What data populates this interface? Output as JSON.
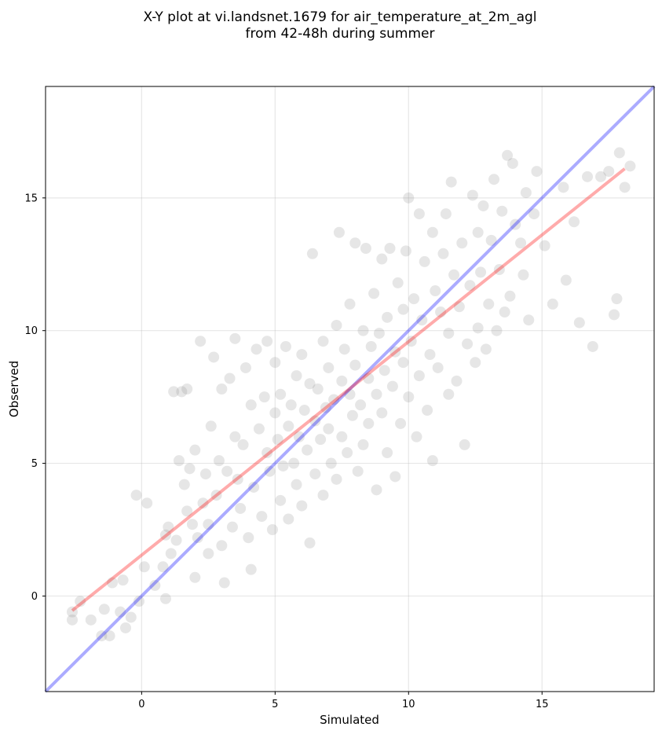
{
  "chart_data": {
    "type": "scatter",
    "title": "X-Y plot at vi.landsnet.1679 for air_temperature_at_2m_agl",
    "subtitle": "from 42-48h during summer",
    "xlabel": "Simulated",
    "ylabel": "Observed",
    "xlim": [
      -3.6,
      19.2
    ],
    "ylim": [
      -3.6,
      19.2
    ],
    "x_ticks": [
      0,
      5,
      10,
      15
    ],
    "y_ticks": [
      0,
      5,
      10,
      15
    ],
    "x_tick_labels": [
      "0",
      "5",
      "10",
      "15"
    ],
    "y_tick_labels": [
      "0",
      "5",
      "10",
      "15"
    ],
    "grid": true,
    "point_color": "#808080",
    "point_opacity": 0.2,
    "identity_line": {
      "x": [
        -3.6,
        19.2
      ],
      "y": [
        -3.6,
        19.2
      ],
      "color": "#0000ff"
    },
    "regression_line": {
      "x": [
        -2.6,
        18.1
      ],
      "y": [
        -0.55,
        16.1
      ],
      "color": "#ff0000"
    },
    "points": [
      [
        -2.6,
        -0.6
      ],
      [
        -2.6,
        -0.9
      ],
      [
        -2.3,
        -0.2
      ],
      [
        -1.9,
        -0.9
      ],
      [
        -1.5,
        -1.5
      ],
      [
        -1.4,
        -0.5
      ],
      [
        -1.2,
        -1.5
      ],
      [
        -1.1,
        0.5
      ],
      [
        -0.8,
        -0.6
      ],
      [
        -0.7,
        0.6
      ],
      [
        -0.6,
        -1.2
      ],
      [
        -0.4,
        -0.8
      ],
      [
        -0.1,
        -0.2
      ],
      [
        -0.2,
        3.8
      ],
      [
        0.2,
        3.5
      ],
      [
        0.1,
        1.1
      ],
      [
        0.5,
        0.4
      ],
      [
        0.8,
        1.1
      ],
      [
        0.9,
        2.3
      ],
      [
        0.9,
        -0.1
      ],
      [
        1.0,
        2.6
      ],
      [
        1.1,
        1.6
      ],
      [
        1.2,
        7.7
      ],
      [
        1.3,
        2.1
      ],
      [
        1.4,
        5.1
      ],
      [
        1.5,
        7.7
      ],
      [
        1.7,
        7.8
      ],
      [
        1.6,
        4.2
      ],
      [
        1.7,
        3.2
      ],
      [
        1.8,
        4.8
      ],
      [
        1.9,
        2.7
      ],
      [
        2.0,
        5.5
      ],
      [
        2.0,
        0.7
      ],
      [
        2.1,
        2.2
      ],
      [
        2.2,
        9.6
      ],
      [
        2.3,
        3.5
      ],
      [
        2.4,
        4.6
      ],
      [
        2.5,
        2.7
      ],
      [
        2.5,
        1.6
      ],
      [
        2.6,
        6.4
      ],
      [
        2.7,
        9.0
      ],
      [
        2.8,
        3.8
      ],
      [
        2.9,
        5.1
      ],
      [
        3.0,
        7.8
      ],
      [
        3.0,
        1.9
      ],
      [
        3.1,
        0.5
      ],
      [
        3.2,
        4.7
      ],
      [
        3.3,
        8.2
      ],
      [
        3.4,
        2.6
      ],
      [
        3.5,
        6.0
      ],
      [
        3.5,
        9.7
      ],
      [
        3.6,
        4.4
      ],
      [
        3.7,
        3.3
      ],
      [
        3.8,
        5.7
      ],
      [
        3.9,
        8.6
      ],
      [
        4.0,
        2.2
      ],
      [
        4.1,
        7.2
      ],
      [
        4.1,
        1.0
      ],
      [
        4.2,
        4.1
      ],
      [
        4.3,
        9.3
      ],
      [
        4.4,
        6.3
      ],
      [
        4.5,
        3.0
      ],
      [
        4.6,
        7.5
      ],
      [
        4.7,
        5.4
      ],
      [
        4.7,
        9.6
      ],
      [
        4.8,
        4.7
      ],
      [
        4.9,
        2.5
      ],
      [
        5.0,
        6.9
      ],
      [
        5.0,
        8.8
      ],
      [
        5.1,
        5.9
      ],
      [
        5.2,
        3.6
      ],
      [
        5.2,
        7.6
      ],
      [
        5.3,
        4.9
      ],
      [
        5.4,
        9.4
      ],
      [
        5.5,
        6.4
      ],
      [
        5.5,
        2.9
      ],
      [
        5.6,
        7.2
      ],
      [
        5.7,
        5.0
      ],
      [
        5.8,
        8.3
      ],
      [
        5.8,
        4.2
      ],
      [
        5.9,
        6.0
      ],
      [
        6.0,
        9.1
      ],
      [
        6.0,
        3.4
      ],
      [
        6.1,
        7.0
      ],
      [
        6.2,
        5.5
      ],
      [
        6.3,
        8.0
      ],
      [
        6.3,
        2.0
      ],
      [
        6.4,
        12.9
      ],
      [
        6.5,
        6.6
      ],
      [
        6.5,
        4.6
      ],
      [
        6.6,
        7.8
      ],
      [
        6.7,
        5.9
      ],
      [
        6.8,
        9.6
      ],
      [
        6.8,
        3.8
      ],
      [
        6.9,
        7.1
      ],
      [
        7.0,
        6.3
      ],
      [
        7.0,
        8.6
      ],
      [
        7.1,
        5.0
      ],
      [
        7.2,
        7.4
      ],
      [
        7.3,
        10.2
      ],
      [
        7.3,
        4.4
      ],
      [
        7.4,
        13.7
      ],
      [
        7.5,
        8.1
      ],
      [
        7.5,
        6.0
      ],
      [
        7.6,
        9.3
      ],
      [
        7.7,
        5.4
      ],
      [
        7.8,
        7.6
      ],
      [
        7.8,
        11.0
      ],
      [
        7.9,
        6.8
      ],
      [
        8.0,
        13.3
      ],
      [
        8.0,
        8.7
      ],
      [
        8.1,
        4.7
      ],
      [
        8.2,
        7.2
      ],
      [
        8.3,
        10.0
      ],
      [
        8.3,
        5.7
      ],
      [
        8.4,
        13.1
      ],
      [
        8.5,
        8.2
      ],
      [
        8.5,
        6.5
      ],
      [
        8.6,
        9.4
      ],
      [
        8.7,
        11.4
      ],
      [
        8.8,
        7.6
      ],
      [
        8.8,
        4.0
      ],
      [
        8.9,
        9.9
      ],
      [
        9.0,
        6.9
      ],
      [
        9.0,
        12.7
      ],
      [
        9.1,
        8.5
      ],
      [
        9.2,
        5.4
      ],
      [
        9.2,
        10.5
      ],
      [
        9.3,
        13.1
      ],
      [
        9.4,
        7.9
      ],
      [
        9.5,
        9.2
      ],
      [
        9.5,
        4.5
      ],
      [
        9.6,
        11.8
      ],
      [
        9.7,
        6.5
      ],
      [
        9.8,
        8.8
      ],
      [
        9.8,
        10.8
      ],
      [
        9.9,
        13.0
      ],
      [
        10.0,
        15.0
      ],
      [
        10.0,
        7.5
      ],
      [
        10.1,
        9.6
      ],
      [
        10.2,
        11.2
      ],
      [
        10.3,
        6.0
      ],
      [
        10.4,
        14.4
      ],
      [
        10.4,
        8.3
      ],
      [
        10.5,
        10.4
      ],
      [
        10.6,
        12.6
      ],
      [
        10.7,
        7.0
      ],
      [
        10.8,
        9.1
      ],
      [
        10.9,
        13.7
      ],
      [
        10.9,
        5.1
      ],
      [
        11.0,
        11.5
      ],
      [
        11.1,
        8.6
      ],
      [
        11.2,
        10.7
      ],
      [
        11.3,
        12.9
      ],
      [
        11.4,
        14.4
      ],
      [
        11.5,
        7.6
      ],
      [
        11.5,
        9.9
      ],
      [
        11.6,
        15.6
      ],
      [
        11.7,
        12.1
      ],
      [
        11.8,
        8.1
      ],
      [
        11.9,
        10.9
      ],
      [
        12.0,
        13.3
      ],
      [
        12.1,
        5.7
      ],
      [
        12.2,
        9.5
      ],
      [
        12.3,
        11.7
      ],
      [
        12.4,
        15.1
      ],
      [
        12.5,
        8.8
      ],
      [
        12.6,
        13.7
      ],
      [
        12.6,
        10.1
      ],
      [
        12.7,
        12.2
      ],
      [
        12.8,
        14.7
      ],
      [
        12.9,
        9.3
      ],
      [
        13.0,
        11.0
      ],
      [
        13.1,
        13.4
      ],
      [
        13.2,
        15.7
      ],
      [
        13.3,
        10.0
      ],
      [
        13.4,
        12.3
      ],
      [
        13.5,
        14.5
      ],
      [
        13.6,
        10.7
      ],
      [
        13.7,
        16.6
      ],
      [
        13.8,
        11.3
      ],
      [
        13.9,
        16.3
      ],
      [
        14.0,
        14.0
      ],
      [
        14.2,
        13.3
      ],
      [
        14.3,
        12.1
      ],
      [
        14.4,
        15.2
      ],
      [
        14.5,
        10.4
      ],
      [
        14.7,
        14.4
      ],
      [
        14.8,
        16.0
      ],
      [
        15.1,
        13.2
      ],
      [
        15.4,
        11.0
      ],
      [
        15.8,
        15.4
      ],
      [
        15.9,
        11.9
      ],
      [
        16.2,
        14.1
      ],
      [
        16.4,
        10.3
      ],
      [
        16.7,
        15.8
      ],
      [
        16.9,
        9.4
      ],
      [
        17.2,
        15.8
      ],
      [
        17.5,
        16.0
      ],
      [
        17.7,
        10.6
      ],
      [
        17.8,
        11.2
      ],
      [
        17.9,
        16.7
      ],
      [
        18.1,
        15.4
      ],
      [
        18.3,
        16.2
      ]
    ]
  }
}
